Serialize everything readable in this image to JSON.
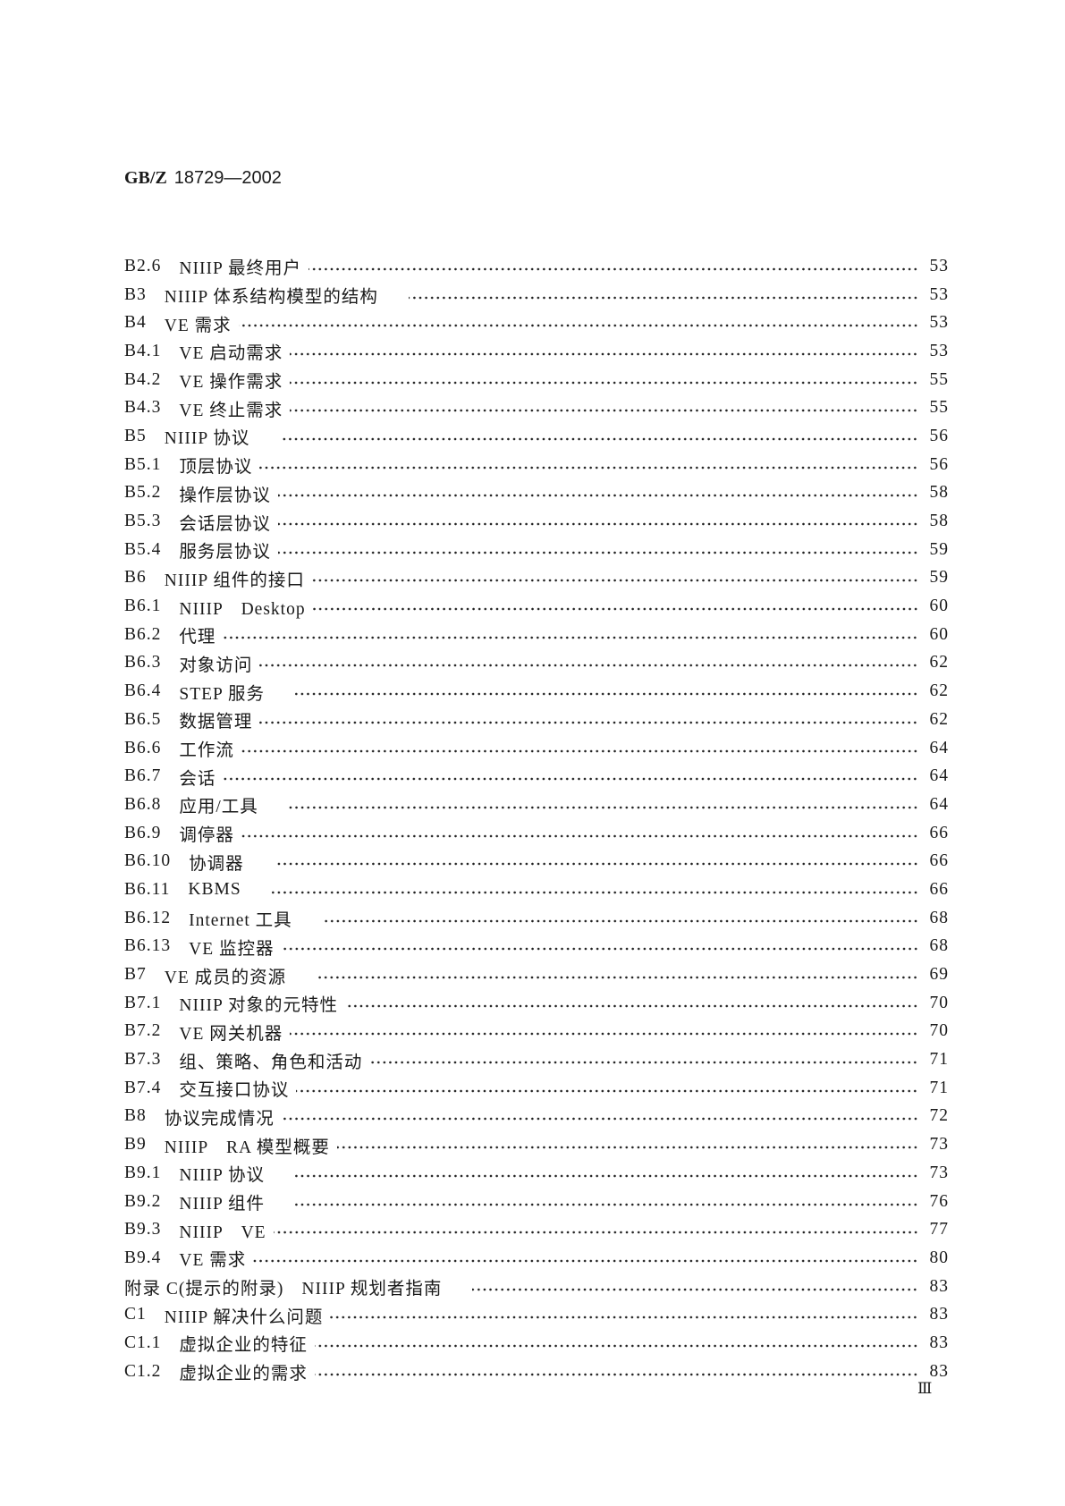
{
  "header": {
    "code": "GB/Z",
    "number": "18729—2002"
  },
  "toc": [
    {
      "num": "B2.6",
      "title": "NIIIP 最终用户",
      "page": "53"
    },
    {
      "num": "B3",
      "title": "NIIIP 体系结构模型的结构",
      "page": "53"
    },
    {
      "num": "B4",
      "title": "VE 需求",
      "page": "53"
    },
    {
      "num": "B4.1",
      "title": "VE 启动需求",
      "page": "53"
    },
    {
      "num": "B4.2",
      "title": "VE 操作需求",
      "page": "55"
    },
    {
      "num": "B4.3",
      "title": "VE 终止需求",
      "page": "55"
    },
    {
      "num": "B5",
      "title": "NIIIP 协议",
      "page": "56"
    },
    {
      "num": "B5.1",
      "title": "顶层协议",
      "page": "56"
    },
    {
      "num": "B5.2",
      "title": "操作层协议",
      "page": "58"
    },
    {
      "num": "B5.3",
      "title": "会话层协议",
      "page": "58"
    },
    {
      "num": "B5.4",
      "title": "服务层协议",
      "page": "59"
    },
    {
      "num": "B6",
      "title": "NIIIP 组件的接口",
      "page": "59"
    },
    {
      "num": "B6.1",
      "title": "NIIIP　Desktop",
      "page": "60"
    },
    {
      "num": "B6.2",
      "title": "代理",
      "page": "60"
    },
    {
      "num": "B6.3",
      "title": "对象访问",
      "page": "62"
    },
    {
      "num": "B6.4",
      "title": "STEP 服务",
      "page": "62"
    },
    {
      "num": "B6.5",
      "title": "数据管理",
      "page": "62"
    },
    {
      "num": "B6.6",
      "title": "工作流",
      "page": "64"
    },
    {
      "num": "B6.7",
      "title": "会话",
      "page": "64"
    },
    {
      "num": "B6.8",
      "title": "应用/工具",
      "page": "64"
    },
    {
      "num": "B6.9",
      "title": "调停器",
      "page": "66"
    },
    {
      "num": "B6.10",
      "title": "协调器",
      "page": "66"
    },
    {
      "num": "B6.11",
      "title": "KBMS",
      "page": "66"
    },
    {
      "num": "B6.12",
      "title": "Internet 工具",
      "page": "68"
    },
    {
      "num": "B6.13",
      "title": "VE 监控器",
      "page": "68"
    },
    {
      "num": "B7",
      "title": "VE 成员的资源",
      "page": "69"
    },
    {
      "num": "B7.1",
      "title": "NIIIP 对象的元特性",
      "page": "70"
    },
    {
      "num": "B7.2",
      "title": "VE 网关机器",
      "page": "70"
    },
    {
      "num": "B7.3",
      "title": "组、策略、角色和活动",
      "page": "71"
    },
    {
      "num": "B7.4",
      "title": "交互接口协议",
      "page": "71"
    },
    {
      "num": "B8",
      "title": "协议完成情况",
      "page": "72"
    },
    {
      "num": "B9",
      "title": "NIIIP　RA 模型概要",
      "page": "73"
    },
    {
      "num": "B9.1",
      "title": "NIIIP 协议",
      "page": "73"
    },
    {
      "num": "B9.2",
      "title": "NIIIP 组件",
      "page": "76"
    },
    {
      "num": "B9.3",
      "title": "NIIIP　VE",
      "page": "77"
    },
    {
      "num": "B9.4",
      "title": "VE 需求",
      "page": "80"
    },
    {
      "num": "附录 C(提示的附录)",
      "title": "NIIIP 规划者指南",
      "page": "83"
    },
    {
      "num": "C1",
      "title": "NIIIP 解决什么问题",
      "page": "83"
    },
    {
      "num": "C1.1",
      "title": "虚拟企业的特征",
      "page": "83"
    },
    {
      "num": "C1.2",
      "title": "虚拟企业的需求",
      "page": "83"
    }
  ],
  "folio": "Ⅲ"
}
